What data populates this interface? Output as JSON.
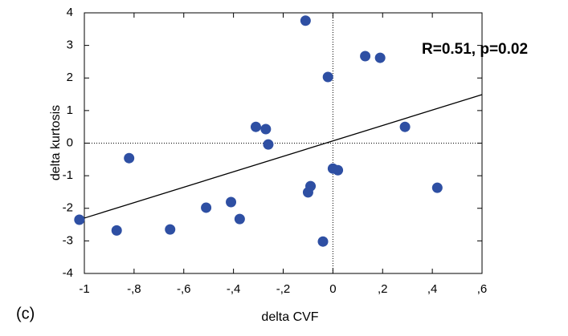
{
  "chart_data": {
    "type": "scatter",
    "x_label": "delta CVF",
    "y_label": "delta kurtosis",
    "annotation": "R=0.51, p=0.02",
    "panel_label": "(c)",
    "series": [
      {
        "name": "points",
        "color": "#2e4fa3",
        "x": [
          -1.02,
          -0.87,
          -0.82,
          -0.655,
          -0.51,
          -0.41,
          -0.375,
          -0.31,
          -0.27,
          -0.26,
          -0.11,
          -0.1,
          -0.09,
          -0.04,
          -0.02,
          0.0,
          0.02,
          0.13,
          0.19,
          0.29,
          0.42
        ],
        "values": [
          -2.35,
          -2.68,
          -0.46,
          -2.65,
          -1.98,
          -1.81,
          -2.33,
          0.5,
          0.43,
          -0.04,
          3.76,
          -1.51,
          -1.32,
          -3.02,
          2.03,
          -0.78,
          -0.83,
          2.67,
          2.62,
          0.5,
          -1.37
        ]
      }
    ],
    "fit": {
      "x": [
        -1,
        0.6
      ],
      "values": [
        -2.3,
        1.49
      ]
    },
    "xlim": [
      -1,
      0.6
    ],
    "xticks": [
      {
        "value": -1,
        "label": "-1"
      },
      {
        "value": -0.8,
        "label": "-,8"
      },
      {
        "value": -0.6,
        "label": "-,6"
      },
      {
        "value": -0.4,
        "label": "-,4"
      },
      {
        "value": -0.2,
        "label": "-,2"
      },
      0,
      {
        "value": 0.2,
        "label": ",2"
      },
      {
        "value": 0.4,
        "label": ",4"
      },
      {
        "value": 0.6,
        "label": ",6"
      }
    ],
    "ylim": [
      -4,
      4
    ],
    "yticks": [
      -4,
      -3,
      -2,
      -1,
      0,
      1,
      2,
      3,
      4
    ]
  }
}
